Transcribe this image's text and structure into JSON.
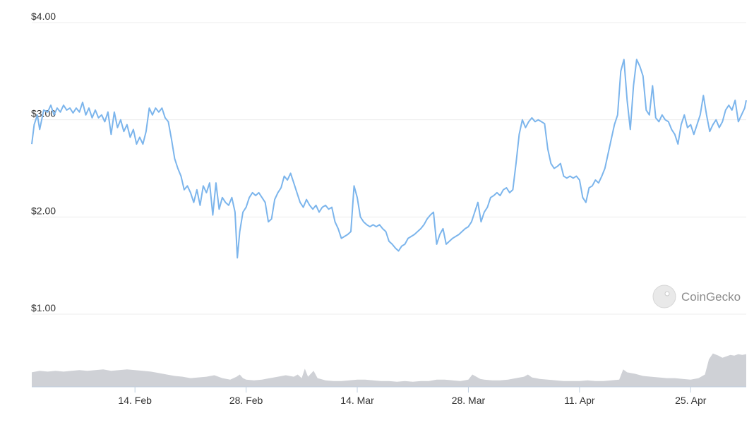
{
  "chart_data": {
    "type": "line",
    "y_tick_labels": [
      "$1.00",
      "$2.00",
      "$3.00",
      "$4.00"
    ],
    "y_tick_values": [
      1,
      2,
      3,
      4
    ],
    "ylim": [
      1,
      4
    ],
    "x_tick_labels": [
      "14. Feb",
      "28. Feb",
      "14. Mar",
      "28. Mar",
      "11. Apr",
      "25. Apr"
    ],
    "x_tick_days": [
      14,
      28,
      42,
      56,
      70,
      84
    ],
    "xlim_days": [
      1,
      91
    ],
    "grid": true,
    "colors": {
      "price": "#7cb5ec",
      "volume": "#cfd1d6",
      "grid": "#ececec",
      "axis": "#c0d0e0"
    },
    "price": {
      "points": [
        [
          1.0,
          2.75
        ],
        [
          1.3,
          2.95
        ],
        [
          1.7,
          3.05
        ],
        [
          2.0,
          2.9
        ],
        [
          2.5,
          3.1
        ],
        [
          3.0,
          3.08
        ],
        [
          3.4,
          3.15
        ],
        [
          3.8,
          3.05
        ],
        [
          4.2,
          3.12
        ],
        [
          4.6,
          3.08
        ],
        [
          5.0,
          3.15
        ],
        [
          5.4,
          3.1
        ],
        [
          5.8,
          3.12
        ],
        [
          6.2,
          3.07
        ],
        [
          6.6,
          3.12
        ],
        [
          7.0,
          3.08
        ],
        [
          7.4,
          3.18
        ],
        [
          7.8,
          3.05
        ],
        [
          8.2,
          3.12
        ],
        [
          8.6,
          3.02
        ],
        [
          9.0,
          3.1
        ],
        [
          9.4,
          3.02
        ],
        [
          9.8,
          3.05
        ],
        [
          10.2,
          2.98
        ],
        [
          10.6,
          3.08
        ],
        [
          11.0,
          2.85
        ],
        [
          11.4,
          3.08
        ],
        [
          11.8,
          2.92
        ],
        [
          12.2,
          3.0
        ],
        [
          12.6,
          2.88
        ],
        [
          13.0,
          2.95
        ],
        [
          13.4,
          2.82
        ],
        [
          13.8,
          2.9
        ],
        [
          14.2,
          2.75
        ],
        [
          14.6,
          2.82
        ],
        [
          15.0,
          2.75
        ],
        [
          15.4,
          2.88
        ],
        [
          15.8,
          3.12
        ],
        [
          16.2,
          3.05
        ],
        [
          16.6,
          3.12
        ],
        [
          17.0,
          3.08
        ],
        [
          17.4,
          3.12
        ],
        [
          17.8,
          3.02
        ],
        [
          18.2,
          2.98
        ],
        [
          18.6,
          2.8
        ],
        [
          19.0,
          2.6
        ],
        [
          19.4,
          2.5
        ],
        [
          19.8,
          2.42
        ],
        [
          20.2,
          2.28
        ],
        [
          20.6,
          2.32
        ],
        [
          21.0,
          2.25
        ],
        [
          21.4,
          2.15
        ],
        [
          21.8,
          2.28
        ],
        [
          22.2,
          2.12
        ],
        [
          22.6,
          2.32
        ],
        [
          23.0,
          2.25
        ],
        [
          23.4,
          2.35
        ],
        [
          23.8,
          2.02
        ],
        [
          24.2,
          2.35
        ],
        [
          24.6,
          2.08
        ],
        [
          25.0,
          2.2
        ],
        [
          25.4,
          2.15
        ],
        [
          25.8,
          2.12
        ],
        [
          26.2,
          2.2
        ],
        [
          26.6,
          2.05
        ],
        [
          26.9,
          1.58
        ],
        [
          27.2,
          1.85
        ],
        [
          27.6,
          2.05
        ],
        [
          28.0,
          2.1
        ],
        [
          28.4,
          2.2
        ],
        [
          28.8,
          2.25
        ],
        [
          29.2,
          2.22
        ],
        [
          29.6,
          2.25
        ],
        [
          30.0,
          2.2
        ],
        [
          30.4,
          2.15
        ],
        [
          30.8,
          1.95
        ],
        [
          31.2,
          1.98
        ],
        [
          31.6,
          2.18
        ],
        [
          32.0,
          2.25
        ],
        [
          32.4,
          2.3
        ],
        [
          32.8,
          2.42
        ],
        [
          33.2,
          2.38
        ],
        [
          33.6,
          2.45
        ],
        [
          34.0,
          2.35
        ],
        [
          34.4,
          2.25
        ],
        [
          34.8,
          2.15
        ],
        [
          35.2,
          2.1
        ],
        [
          35.6,
          2.18
        ],
        [
          36.0,
          2.12
        ],
        [
          36.4,
          2.08
        ],
        [
          36.8,
          2.12
        ],
        [
          37.2,
          2.05
        ],
        [
          37.6,
          2.1
        ],
        [
          38.0,
          2.12
        ],
        [
          38.4,
          2.08
        ],
        [
          38.8,
          2.1
        ],
        [
          39.2,
          1.95
        ],
        [
          39.6,
          1.88
        ],
        [
          40.0,
          1.78
        ],
        [
          40.4,
          1.8
        ],
        [
          40.8,
          1.82
        ],
        [
          41.2,
          1.85
        ],
        [
          41.6,
          2.32
        ],
        [
          42.0,
          2.2
        ],
        [
          42.4,
          2.0
        ],
        [
          42.8,
          1.95
        ],
        [
          43.2,
          1.92
        ],
        [
          43.6,
          1.9
        ],
        [
          44.0,
          1.92
        ],
        [
          44.4,
          1.9
        ],
        [
          44.8,
          1.92
        ],
        [
          45.2,
          1.88
        ],
        [
          45.6,
          1.85
        ],
        [
          46.0,
          1.75
        ],
        [
          46.4,
          1.72
        ],
        [
          46.8,
          1.68
        ],
        [
          47.2,
          1.65
        ],
        [
          47.6,
          1.7
        ],
        [
          48.0,
          1.72
        ],
        [
          48.4,
          1.78
        ],
        [
          48.8,
          1.8
        ],
        [
          49.2,
          1.82
        ],
        [
          49.6,
          1.85
        ],
        [
          50.0,
          1.88
        ],
        [
          50.4,
          1.92
        ],
        [
          50.8,
          1.98
        ],
        [
          51.2,
          2.02
        ],
        [
          51.6,
          2.05
        ],
        [
          52.0,
          1.72
        ],
        [
          52.4,
          1.82
        ],
        [
          52.8,
          1.88
        ],
        [
          53.2,
          1.72
        ],
        [
          53.6,
          1.75
        ],
        [
          54.0,
          1.78
        ],
        [
          54.4,
          1.8
        ],
        [
          54.8,
          1.82
        ],
        [
          55.2,
          1.85
        ],
        [
          55.6,
          1.88
        ],
        [
          56.0,
          1.9
        ],
        [
          56.4,
          1.95
        ],
        [
          56.8,
          2.05
        ],
        [
          57.2,
          2.15
        ],
        [
          57.6,
          1.95
        ],
        [
          58.0,
          2.05
        ],
        [
          58.4,
          2.1
        ],
        [
          58.8,
          2.2
        ],
        [
          59.2,
          2.22
        ],
        [
          59.6,
          2.25
        ],
        [
          60.0,
          2.22
        ],
        [
          60.4,
          2.28
        ],
        [
          60.8,
          2.3
        ],
        [
          61.2,
          2.25
        ],
        [
          61.6,
          2.28
        ],
        [
          62.0,
          2.55
        ],
        [
          62.4,
          2.85
        ],
        [
          62.8,
          3.0
        ],
        [
          63.2,
          2.92
        ],
        [
          63.6,
          2.98
        ],
        [
          64.0,
          3.02
        ],
        [
          64.4,
          2.98
        ],
        [
          64.8,
          3.0
        ],
        [
          65.2,
          2.98
        ],
        [
          65.6,
          2.96
        ],
        [
          66.0,
          2.7
        ],
        [
          66.4,
          2.55
        ],
        [
          66.8,
          2.5
        ],
        [
          67.2,
          2.52
        ],
        [
          67.6,
          2.55
        ],
        [
          68.0,
          2.42
        ],
        [
          68.4,
          2.4
        ],
        [
          68.8,
          2.42
        ],
        [
          69.2,
          2.4
        ],
        [
          69.6,
          2.42
        ],
        [
          70.0,
          2.38
        ],
        [
          70.4,
          2.2
        ],
        [
          70.8,
          2.15
        ],
        [
          71.2,
          2.3
        ],
        [
          71.6,
          2.32
        ],
        [
          72.0,
          2.38
        ],
        [
          72.4,
          2.35
        ],
        [
          72.8,
          2.42
        ],
        [
          73.2,
          2.5
        ],
        [
          73.6,
          2.65
        ],
        [
          74.0,
          2.8
        ],
        [
          74.4,
          2.95
        ],
        [
          74.8,
          3.05
        ],
        [
          75.2,
          3.5
        ],
        [
          75.6,
          3.62
        ],
        [
          76.0,
          3.2
        ],
        [
          76.4,
          2.9
        ],
        [
          76.8,
          3.35
        ],
        [
          77.2,
          3.62
        ],
        [
          77.6,
          3.55
        ],
        [
          78.0,
          3.45
        ],
        [
          78.4,
          3.1
        ],
        [
          78.8,
          3.05
        ],
        [
          79.2,
          3.35
        ],
        [
          79.6,
          3.02
        ],
        [
          80.0,
          2.98
        ],
        [
          80.4,
          3.05
        ],
        [
          80.8,
          3.0
        ],
        [
          81.2,
          2.98
        ],
        [
          81.6,
          2.9
        ],
        [
          82.0,
          2.85
        ],
        [
          82.4,
          2.75
        ],
        [
          82.8,
          2.95
        ],
        [
          83.2,
          3.05
        ],
        [
          83.6,
          2.92
        ],
        [
          84.0,
          2.95
        ],
        [
          84.4,
          2.85
        ],
        [
          84.8,
          2.95
        ],
        [
          85.2,
          3.05
        ],
        [
          85.6,
          3.25
        ],
        [
          86.0,
          3.05
        ],
        [
          86.4,
          2.88
        ],
        [
          86.8,
          2.95
        ],
        [
          87.2,
          3.0
        ],
        [
          87.6,
          2.92
        ],
        [
          88.0,
          2.98
        ],
        [
          88.4,
          3.1
        ],
        [
          88.8,
          3.15
        ],
        [
          89.2,
          3.1
        ],
        [
          89.6,
          3.2
        ],
        [
          90.0,
          2.98
        ],
        [
          90.4,
          3.05
        ],
        [
          90.8,
          3.12
        ],
        [
          91.0,
          3.2
        ]
      ]
    },
    "volume": {
      "points": [
        [
          1.0,
          0.2
        ],
        [
          2.0,
          0.22
        ],
        [
          3.0,
          0.21
        ],
        [
          4.0,
          0.22
        ],
        [
          5.0,
          0.21
        ],
        [
          6.0,
          0.22
        ],
        [
          7.0,
          0.23
        ],
        [
          8.0,
          0.22
        ],
        [
          9.0,
          0.23
        ],
        [
          10.0,
          0.24
        ],
        [
          11.0,
          0.22
        ],
        [
          12.0,
          0.23
        ],
        [
          13.0,
          0.24
        ],
        [
          14.0,
          0.23
        ],
        [
          15.0,
          0.22
        ],
        [
          16.0,
          0.21
        ],
        [
          17.0,
          0.19
        ],
        [
          18.0,
          0.17
        ],
        [
          19.0,
          0.15
        ],
        [
          20.0,
          0.14
        ],
        [
          21.0,
          0.12
        ],
        [
          22.0,
          0.13
        ],
        [
          23.0,
          0.14
        ],
        [
          24.0,
          0.16
        ],
        [
          25.0,
          0.12
        ],
        [
          26.0,
          0.1
        ],
        [
          26.8,
          0.14
        ],
        [
          27.2,
          0.17
        ],
        [
          27.6,
          0.12
        ],
        [
          28.0,
          0.1
        ],
        [
          29.0,
          0.09
        ],
        [
          30.0,
          0.1
        ],
        [
          31.0,
          0.12
        ],
        [
          32.0,
          0.14
        ],
        [
          33.0,
          0.16
        ],
        [
          34.0,
          0.14
        ],
        [
          34.5,
          0.17
        ],
        [
          35.0,
          0.12
        ],
        [
          35.4,
          0.25
        ],
        [
          35.8,
          0.14
        ],
        [
          36.5,
          0.22
        ],
        [
          37.0,
          0.12
        ],
        [
          38.0,
          0.09
        ],
        [
          39.0,
          0.08
        ],
        [
          40.0,
          0.08
        ],
        [
          41.0,
          0.09
        ],
        [
          42.0,
          0.1
        ],
        [
          43.0,
          0.1
        ],
        [
          44.0,
          0.09
        ],
        [
          45.0,
          0.08
        ],
        [
          46.0,
          0.08
        ],
        [
          47.0,
          0.07
        ],
        [
          48.0,
          0.08
        ],
        [
          49.0,
          0.07
        ],
        [
          50.0,
          0.08
        ],
        [
          51.0,
          0.08
        ],
        [
          52.0,
          0.1
        ],
        [
          53.0,
          0.1
        ],
        [
          54.0,
          0.09
        ],
        [
          55.0,
          0.08
        ],
        [
          56.0,
          0.1
        ],
        [
          56.5,
          0.17
        ],
        [
          57.0,
          0.14
        ],
        [
          57.5,
          0.11
        ],
        [
          58.0,
          0.1
        ],
        [
          59.0,
          0.09
        ],
        [
          60.0,
          0.09
        ],
        [
          61.0,
          0.1
        ],
        [
          62.0,
          0.12
        ],
        [
          63.0,
          0.14
        ],
        [
          63.5,
          0.17
        ],
        [
          64.0,
          0.13
        ],
        [
          65.0,
          0.11
        ],
        [
          66.0,
          0.1
        ],
        [
          67.0,
          0.09
        ],
        [
          68.0,
          0.08
        ],
        [
          69.0,
          0.08
        ],
        [
          70.0,
          0.08
        ],
        [
          71.0,
          0.09
        ],
        [
          72.0,
          0.08
        ],
        [
          73.0,
          0.08
        ],
        [
          74.0,
          0.09
        ],
        [
          75.0,
          0.1
        ],
        [
          75.5,
          0.24
        ],
        [
          76.0,
          0.2
        ],
        [
          77.0,
          0.18
        ],
        [
          78.0,
          0.15
        ],
        [
          79.0,
          0.14
        ],
        [
          80.0,
          0.13
        ],
        [
          81.0,
          0.12
        ],
        [
          82.0,
          0.12
        ],
        [
          83.0,
          0.11
        ],
        [
          84.0,
          0.1
        ],
        [
          85.0,
          0.12
        ],
        [
          85.8,
          0.17
        ],
        [
          86.3,
          0.38
        ],
        [
          86.8,
          0.46
        ],
        [
          87.5,
          0.43
        ],
        [
          88.0,
          0.4
        ],
        [
          88.5,
          0.42
        ],
        [
          89.0,
          0.44
        ],
        [
          89.5,
          0.43
        ],
        [
          90.0,
          0.45
        ],
        [
          90.5,
          0.44
        ],
        [
          91.0,
          0.45
        ]
      ]
    }
  },
  "brand": {
    "name": "CoinGecko",
    "icon": "gecko-icon"
  }
}
